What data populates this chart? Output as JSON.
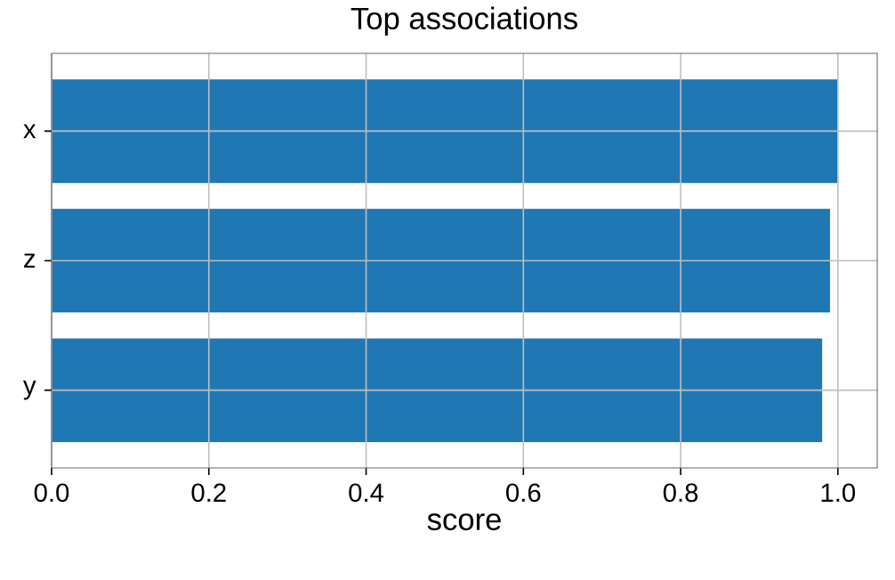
{
  "chart_data": {
    "type": "bar",
    "orientation": "horizontal",
    "title": "Top associations",
    "xlabel": "score",
    "categories": [
      "x",
      "z",
      "y"
    ],
    "values": [
      1.0,
      0.99,
      0.98
    ],
    "color": "#1f77b4",
    "xlim": [
      0,
      1.05
    ],
    "xticks": [
      {
        "value": 0,
        "label": "0.0"
      },
      {
        "value": 0.2,
        "label": "0.2"
      },
      {
        "value": 0.4,
        "label": "0.4"
      },
      {
        "value": 0.6,
        "label": "0.6"
      },
      {
        "value": 0.8,
        "label": "0.8"
      },
      {
        "value": 1.0,
        "label": "1.0"
      }
    ],
    "grid": true
  }
}
